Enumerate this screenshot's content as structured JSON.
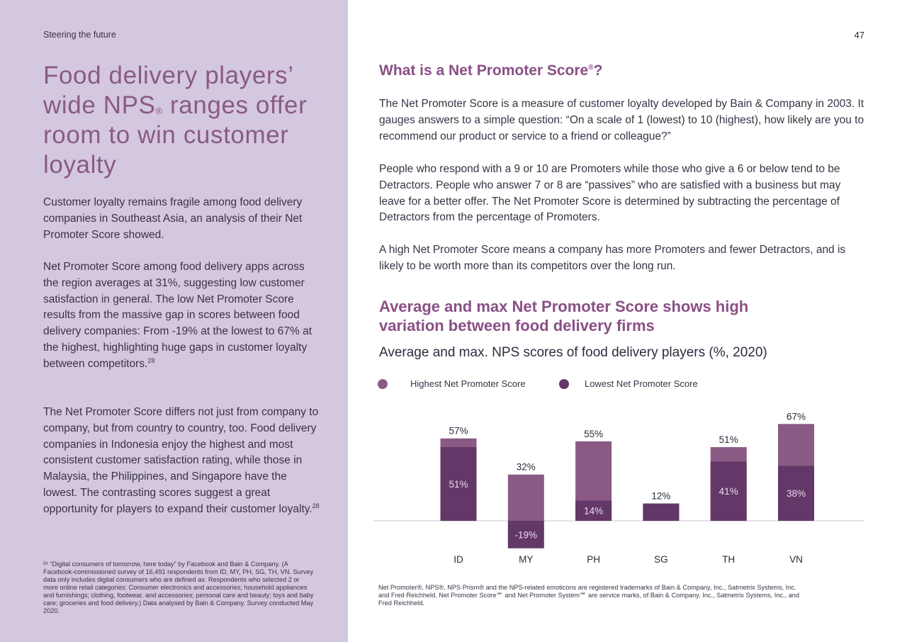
{
  "left": {
    "section_label": "Steering the future",
    "headline_part1": "Food delivery players’ wide NPS",
    "headline_reg": "®",
    "headline_part2": " ranges offer room to win customer loyalty",
    "para1": "Customer loyalty remains fragile among food delivery companies in Southeast Asia, an analysis of their Net Promoter Score showed.",
    "para2": "Net Promoter Score among food delivery apps across the region averages at 31%, suggesting low customer satisfaction in general. The low Net Promoter Score results from the massive gap in scores between food delivery companies: From -19% at the lowest to 67% at the highest, highlighting huge gaps in customer loyalty between competitors.",
    "para2_ref": "28",
    "para3": "The Net Promoter Score differs not just from company to company, but from country to country, too. Food delivery companies in Indonesia enjoy the highest and most consistent customer satisfaction rating, while those in Malaysia, the Philippines, and Singapore have the lowest. The contrasting scores suggest a great opportunity for players to expand their customer loyalty.",
    "para3_ref": "28",
    "footnote": "²⁸ “Digital consumers of tomorrow, here today” by Facebook and Bain & Company. (A Facebook-commissioned survey of 16,491 respondents from ID, MY, PH, SG, TH, VN. Survey data only includes digital consumers who are defined as: Respondents who selected 2 or more online retail categories: Consumer electronics and accessories; household appliances and furnishings; clothing, footwear, and accessories; personal care and beauty; toys and baby care; groceries and food delivery.) Data analysed by Bain & Company. Survey conducted May 2020."
  },
  "right": {
    "page_number": "47",
    "heading_part1": "What is a Net Promoter Score",
    "heading_reg": "®",
    "heading_part2": "?",
    "para1": "The Net Promoter Score is a measure of customer loyalty developed by Bain & Company in 2003. It gauges answers to a simple question: “On a scale of 1 (lowest) to 10 (highest), how likely are you to recommend our product or service to a friend or colleague?”",
    "para2": "People who respond with a 9 or 10 are Promoters while those who give a 6 or below tend to be Detractors. People who answer 7 or 8 are “passives” who are satisfied with a business but may leave for a better offer. The Net Promoter Score is determined by subtracting the percentage of Detractors from the percentage of Promoters.",
    "para3": "A high Net Promoter Score means a company has more Promoters and fewer Detractors, and is likely to be worth more than its competitors over the long run.",
    "chart_heading": "Average and max Net Promoter Score shows high variation between food delivery firms",
    "chart_subtitle": "Average and max. NPS scores of food delivery players (%, 2020)",
    "disclaimer": "Net Promoter®, NPS®, NPS Prism® and the NPS-related emoticons are registered trademarks of Bain & Company, Inc., Satmetrix Systems, Inc. and Fred Reichheld. Net Promoter Score℠ and Net Promoter System℠ are service marks, of Bain & Company, Inc., Satmetrix Systems, Inc., and Fred Reichheld."
  },
  "colors": {
    "left_panel": "#d4c8e0",
    "accent_text": "#8a4f86",
    "highest_bar": "#8b5a84",
    "lowest_bar": "#633767"
  },
  "chart_data": {
    "type": "bar",
    "categories": [
      "ID",
      "MY",
      "PH",
      "SG",
      "TH",
      "VN"
    ],
    "series": [
      {
        "name": "Highest Net Promoter Score",
        "values": [
          57,
          32,
          55,
          12,
          51,
          67
        ],
        "labels": [
          "57%",
          "32%",
          "55%",
          "12%",
          "51%",
          "67%"
        ]
      },
      {
        "name": "Lowest Net Promoter Score",
        "values": [
          51,
          -19,
          14,
          12,
          41,
          38
        ],
        "labels": [
          "51%",
          "-19%",
          "14%",
          "",
          "41%",
          "38%"
        ]
      }
    ],
    "legend_position": "top-left",
    "grid": false,
    "ylim": [
      -19,
      67
    ]
  }
}
